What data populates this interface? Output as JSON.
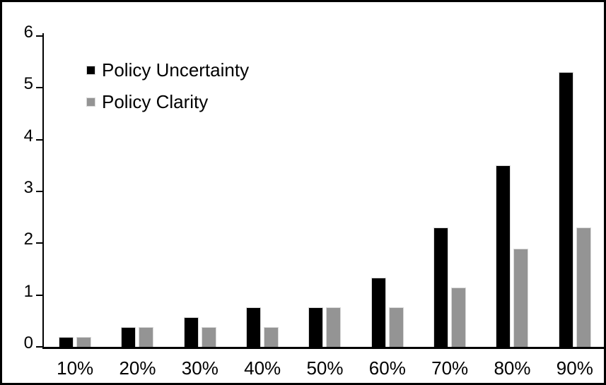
{
  "chart_data": {
    "type": "bar",
    "title": "",
    "xlabel": "",
    "ylabel": "",
    "categories": [
      "10%",
      "20%",
      "30%",
      "40%",
      "50%",
      "60%",
      "70%",
      "80%",
      "90%"
    ],
    "series": [
      {
        "name": "Policy Uncertainty",
        "color": "#000000",
        "values": [
          0.19,
          0.38,
          0.57,
          0.76,
          0.77,
          1.33,
          2.3,
          3.5,
          5.3
        ]
      },
      {
        "name": "Policy Clarity",
        "color": "#949494",
        "values": [
          0.19,
          0.38,
          0.38,
          0.38,
          0.77,
          0.77,
          1.15,
          1.9,
          2.3
        ]
      }
    ],
    "ylim": [
      0,
      6
    ],
    "yticks": [
      0,
      1,
      2,
      3,
      4,
      5,
      6
    ],
    "grid": false,
    "legend_position": "top-left-inside"
  },
  "colors": {
    "axis": "#000000",
    "frame_border": "#000000",
    "background": "#ffffff",
    "bar_uncertainty": "#000000",
    "bar_clarity": "#949494",
    "bar_edge": "#d9d9d9"
  }
}
